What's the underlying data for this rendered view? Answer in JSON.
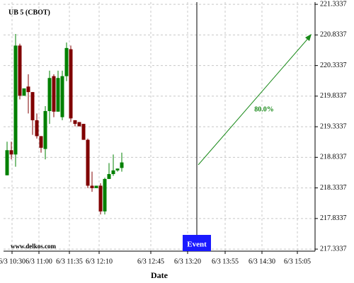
{
  "chart_data": {
    "type": "candlestick",
    "title": "UB 5 (CBOT)",
    "x_label": "Date",
    "watermark": "www.delkos.com",
    "event_label": "Event",
    "projection_label": "80.0%",
    "xticks": [
      "6/3 10:30",
      "6/3 11:00",
      "6/3 11:35",
      "6/3 12:10",
      "6/3 12:45",
      "6/3 13:20",
      "6/3 13:55",
      "6/3 14:30",
      "6/3 15:05"
    ],
    "open": [
      218.54,
      218.95,
      218.88,
      220.66,
      219.84,
      219.99,
      219.9,
      219.44,
      219.18,
      218.97,
      219.59,
      220.16,
      219.58,
      219.49,
      220.16,
      220.6,
      219.44,
      219.41,
      219.38,
      219.12,
      218.37,
      218.33,
      218.37,
      217.95,
      218.48,
      218.56,
      218.62,
      218.66
    ],
    "high": [
      219.09,
      219.09,
      220.85,
      220.69,
      219.96,
      220.19,
      219.9,
      219.55,
      219.18,
      219.67,
      220.25,
      220.19,
      220.25,
      220.25,
      220.71,
      220.66,
      219.44,
      219.41,
      219.38,
      219.14,
      218.6,
      218.37,
      218.41,
      218.5,
      218.74,
      218.88,
      218.65,
      218.91
    ],
    "low": [
      218.54,
      218.8,
      218.68,
      219.78,
      219.84,
      219.55,
      219.2,
      219.14,
      218.91,
      218.8,
      219.38,
      219.49,
      219.58,
      219.44,
      220.08,
      219.41,
      219.34,
      219.34,
      219.12,
      218.33,
      218.27,
      218.33,
      217.9,
      217.9,
      218.5,
      218.53,
      218.6,
      218.6
    ],
    "close": [
      218.95,
      218.88,
      220.66,
      219.84,
      219.96,
      219.9,
      219.44,
      219.18,
      218.99,
      219.59,
      220.13,
      219.58,
      220.13,
      220.16,
      220.62,
      219.47,
      219.38,
      219.34,
      219.12,
      218.37,
      218.33,
      218.37,
      217.95,
      218.48,
      218.56,
      218.62,
      218.65,
      218.75
    ],
    "up_color": "#008000",
    "down_color": "#800000",
    "ylim": [
      217.3,
      221.37
    ],
    "yticks": [
      217.3337,
      217.8337,
      218.3337,
      218.8337,
      219.3337,
      219.8337,
      220.3337,
      220.8337,
      221.3337
    ],
    "grid": true
  }
}
